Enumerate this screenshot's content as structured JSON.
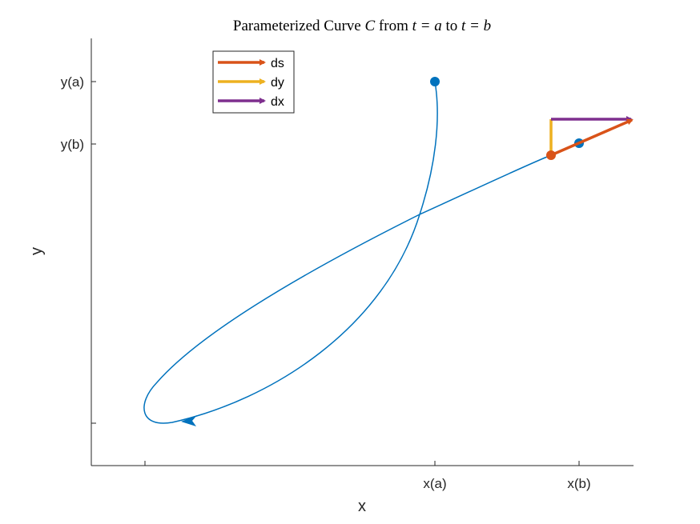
{
  "title": {
    "prefix": "Parameterized Curve ",
    "curve_symbol": "C",
    "from_word": " from ",
    "t_a": "t = a",
    "to_word": " to ",
    "t_b": "t = b"
  },
  "axes": {
    "xlabel": "x",
    "ylabel": "y",
    "x_ticks": [
      {
        "label": ""
      },
      {
        "label": "x(a)"
      },
      {
        "label": "x(b)"
      }
    ],
    "y_ticks": [
      {
        "label": "y(a)"
      },
      {
        "label": "y(b)"
      },
      {
        "label": ""
      }
    ]
  },
  "legend": {
    "placement": "top-left",
    "entries": [
      {
        "label": "ds",
        "color": "#D95319"
      },
      {
        "label": "dy",
        "color": "#EDB120"
      },
      {
        "label": "dx",
        "color": "#7E2F8E"
      }
    ]
  },
  "colors": {
    "curve": "#0072BD",
    "axes": "#262626"
  }
}
